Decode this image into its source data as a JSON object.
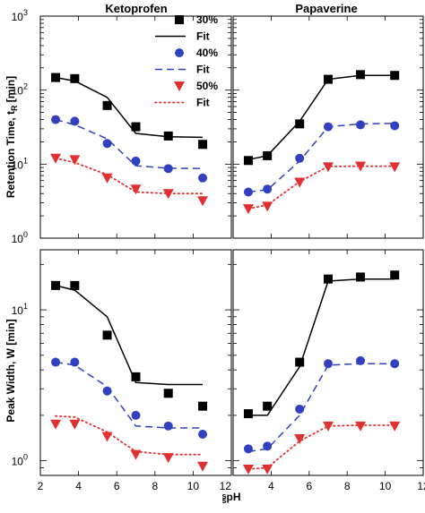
{
  "chart_data": {
    "type": "scatter",
    "column_titles": [
      "Ketoprofen",
      "Papaverine"
    ],
    "ylabels": [
      "Retention Time, t_R [min]",
      "Peak Width, W [min]"
    ],
    "xlabel_main": "pH",
    "xlabel_sup1": "s",
    "xlabel_sub": "s",
    "xlim": [
      2,
      12
    ],
    "x_ticks": [
      2,
      4,
      6,
      8,
      10,
      12
    ],
    "x_tick_labels": [
      "2",
      "4",
      "6",
      "8",
      "10",
      "12"
    ],
    "yscale": "log",
    "x_points": [
      2.8,
      3.8,
      5.5,
      7.0,
      8.7,
      10.5
    ],
    "rows": [
      {
        "ylim": [
          1,
          1000
        ],
        "y_ticks": [
          1,
          10,
          100,
          1000
        ],
        "y_tick_base": [
          "10",
          "10",
          "10",
          "10"
        ],
        "y_tick_exp": [
          "0",
          "1",
          "2",
          "3"
        ],
        "panels": [
          {
            "column": "Ketoprofen",
            "series": [
              {
                "legend_key": "30%",
                "marker": "square",
                "color": "#000000",
                "points": [
                  148,
                  143,
                  62,
                  32,
                  24,
                  18.5
                ]
              },
              {
                "legend_key": "Fit",
                "line": "solid",
                "color": "#000000",
                "points": [
                  148,
                  133,
                  80,
                  26,
                  23.5,
                  23
                ]
              },
              {
                "legend_key": "40%",
                "marker": "circle",
                "color": "#3040c0",
                "points": [
                  40,
                  38,
                  19,
                  11,
                  8.7,
                  6.5
                ]
              },
              {
                "legend_key": "Fit",
                "line": "dashed",
                "color": "#3040c0",
                "points": [
                  40,
                  34,
                  22,
                  9.5,
                  8.8,
                  8.7
                ]
              },
              {
                "legend_key": "50%",
                "marker": "triangle-down",
                "color": "#e03030",
                "points": [
                  12,
                  11.5,
                  6.5,
                  4.6,
                  4.0,
                  3.2
                ]
              },
              {
                "legend_key": "Fit",
                "line": "dotted",
                "color": "#e03030",
                "points": [
                  12,
                  10.5,
                  7.2,
                  4.2,
                  4.0,
                  4.0
                ]
              }
            ]
          },
          {
            "column": "Papaverine",
            "series": [
              {
                "legend_key": "30%",
                "marker": "square",
                "color": "#000000",
                "points": [
                  11.2,
                  13,
                  35,
                  140,
                  162,
                  158
                ]
              },
              {
                "legend_key": "Fit",
                "line": "solid",
                "color": "#000000",
                "points": [
                  11.5,
                  13,
                  38,
                  140,
                  158,
                  158
                ]
              },
              {
                "legend_key": "40%",
                "marker": "circle",
                "color": "#3040c0",
                "points": [
                  4.2,
                  4.6,
                  12,
                  32,
                  34,
                  33
                ]
              },
              {
                "legend_key": "Fit",
                "line": "dashed",
                "color": "#3040c0",
                "points": [
                  4.2,
                  4.5,
                  11,
                  32,
                  35,
                  35.5
                ]
              },
              {
                "legend_key": "50%",
                "marker": "triangle-down",
                "color": "#e03030",
                "points": [
                  2.5,
                  2.7,
                  5.7,
                  9.2,
                  9.4,
                  9.2
                ]
              },
              {
                "legend_key": "Fit",
                "line": "dotted",
                "color": "#e03030",
                "points": [
                  2.5,
                  2.8,
                  5.8,
                  9.3,
                  9.4,
                  9.4
                ]
              }
            ]
          }
        ]
      },
      {
        "ylim": [
          0.8,
          25
        ],
        "y_ticks": [
          1,
          10
        ],
        "y_tick_base": [
          "10",
          "10"
        ],
        "y_tick_exp": [
          "0",
          "1"
        ],
        "panels": [
          {
            "column": "Ketoprofen",
            "series": [
              {
                "legend_key": "30%",
                "marker": "square",
                "color": "#000000",
                "points": [
                  14.5,
                  14.5,
                  6.8,
                  3.6,
                  2.8,
                  2.3
                ]
              },
              {
                "legend_key": "Fit",
                "line": "solid",
                "color": "#000000",
                "points": [
                  14.5,
                  13.5,
                  9.0,
                  3.3,
                  3.2,
                  3.2
                ]
              },
              {
                "legend_key": "40%",
                "marker": "circle",
                "color": "#3040c0",
                "points": [
                  4.5,
                  4.5,
                  2.9,
                  2.0,
                  1.7,
                  1.5
                ]
              },
              {
                "legend_key": "Fit",
                "line": "dashed",
                "color": "#3040c0",
                "points": [
                  4.5,
                  4.3,
                  3.1,
                  1.7,
                  1.65,
                  1.65
                ]
              },
              {
                "legend_key": "50%",
                "marker": "triangle-down",
                "color": "#e03030",
                "points": [
                  1.75,
                  1.75,
                  1.45,
                  1.1,
                  1.05,
                  0.92
                ]
              },
              {
                "legend_key": "Fit",
                "line": "dotted",
                "color": "#e03030",
                "points": [
                  1.98,
                  1.95,
                  1.55,
                  1.15,
                  1.1,
                  1.1
                ]
              }
            ]
          },
          {
            "column": "Papaverine",
            "series": [
              {
                "legend_key": "30%",
                "marker": "square",
                "color": "#000000",
                "points": [
                  2.05,
                  2.3,
                  4.5,
                  16,
                  16.5,
                  17
                ]
              },
              {
                "legend_key": "Fit",
                "line": "solid",
                "color": "#000000",
                "points": [
                  2.0,
                  2.0,
                  4.2,
                  15.5,
                  16.0,
                  16.0
                ]
              },
              {
                "legend_key": "40%",
                "marker": "circle",
                "color": "#3040c0",
                "points": [
                  1.2,
                  1.25,
                  2.2,
                  4.4,
                  4.6,
                  4.4
                ]
              },
              {
                "legend_key": "Fit",
                "line": "dashed",
                "color": "#3040c0",
                "points": [
                  1.15,
                  1.2,
                  2.0,
                  4.3,
                  4.4,
                  4.4
                ]
              },
              {
                "legend_key": "50%",
                "marker": "triangle-down",
                "color": "#e03030",
                "points": [
                  0.88,
                  0.88,
                  1.4,
                  1.7,
                  1.7,
                  1.7
                ]
              },
              {
                "legend_key": "Fit",
                "line": "dotted",
                "color": "#e03030",
                "points": [
                  0.88,
                  0.9,
                  1.35,
                  1.7,
                  1.72,
                  1.72
                ]
              }
            ]
          }
        ]
      }
    ],
    "legend": {
      "placement": "top-left panel, upper-right",
      "entries": [
        {
          "label": "30%",
          "marker": "square",
          "color": "#000000"
        },
        {
          "label": "Fit",
          "line": "solid",
          "color": "#000000"
        },
        {
          "label": "40%",
          "marker": "circle",
          "color": "#3040c0"
        },
        {
          "label": "Fit",
          "line": "dashed",
          "color": "#3040c0"
        },
        {
          "label": "50%",
          "marker": "triangle-down",
          "color": "#e03030"
        },
        {
          "label": "Fit",
          "line": "dotted",
          "color": "#e03030"
        }
      ]
    },
    "grid": false
  }
}
